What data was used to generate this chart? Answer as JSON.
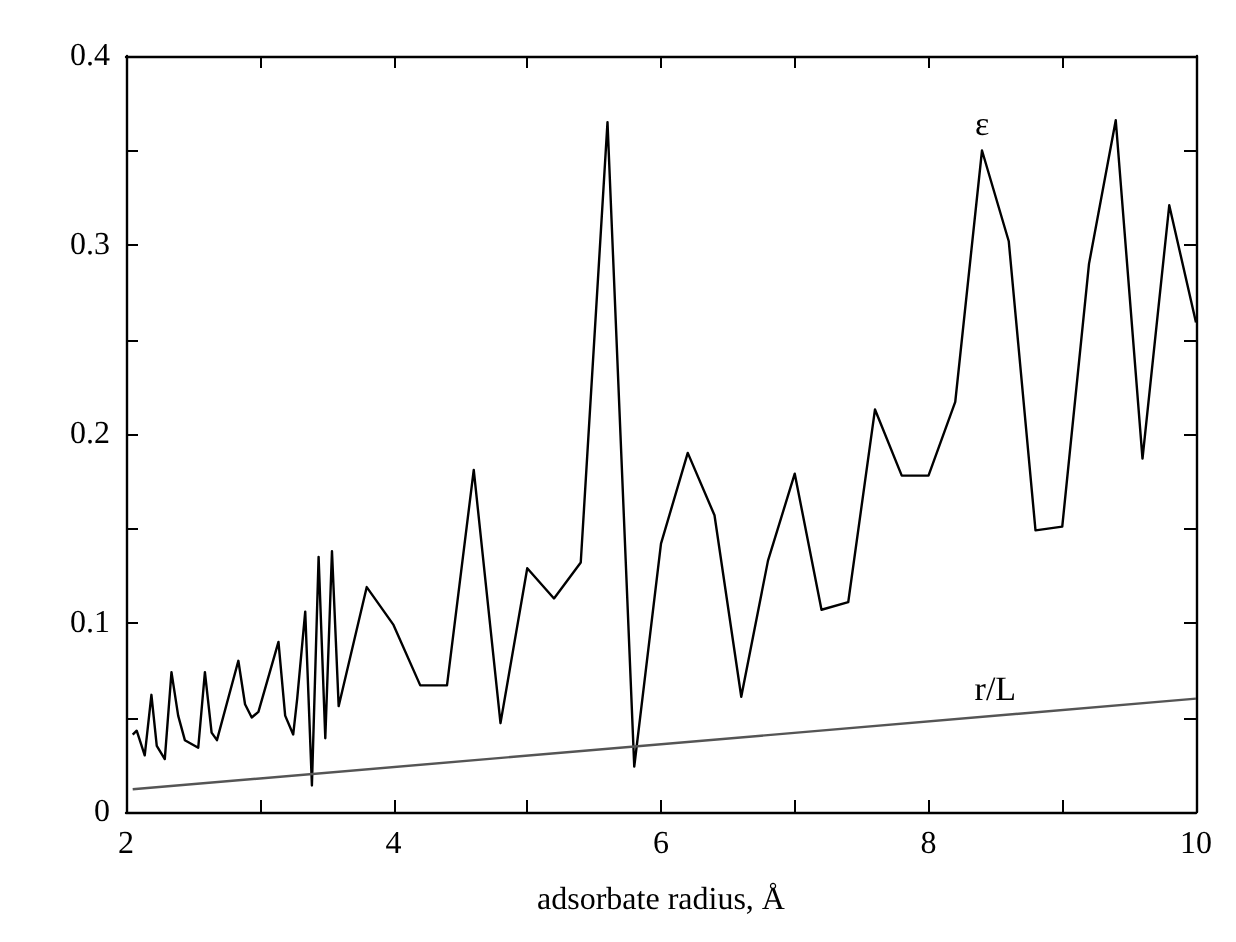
{
  "chart_data": {
    "type": "line",
    "xlabel": "adsorbate radius, Å",
    "xlim": [
      2,
      10
    ],
    "xticks": [
      2,
      {
        "value": 3,
        "label": null
      },
      4,
      {
        "value": 5,
        "label": null
      },
      6,
      {
        "value": 7,
        "label": null
      },
      8,
      {
        "value": 9,
        "label": null
      },
      10
    ],
    "ylim": [
      0,
      0.4
    ],
    "yticks": [
      0,
      {
        "value": 0.05,
        "label": null
      },
      0.1,
      {
        "value": 0.15,
        "label": null
      },
      0.2,
      {
        "value": 0.25,
        "label": null
      },
      0.3,
      {
        "value": 0.35,
        "label": null
      },
      0.4
    ],
    "grid": false,
    "marker": "none",
    "line_style": "solid",
    "series": [
      {
        "color": "#000000",
        "x": [
          2.05,
          2.08,
          2.14,
          2.19,
          2.23,
          2.29,
          2.34,
          2.39,
          2.44,
          2.54,
          2.59,
          2.64,
          2.68,
          2.84,
          2.89,
          2.94,
          2.99,
          3.14,
          3.19,
          3.25,
          3.28,
          3.34,
          3.39,
          3.44,
          3.49,
          3.54,
          3.59,
          3.8,
          4.0,
          4.2,
          4.4,
          4.6,
          4.8,
          5.0,
          5.2,
          5.4,
          5.6,
          5.8,
          6.0,
          6.2,
          6.4,
          6.6,
          6.8,
          7.0,
          7.2,
          7.4,
          7.6,
          7.8,
          8.0,
          8.2,
          8.4,
          8.6,
          8.8,
          9.0,
          9.2,
          9.4,
          9.6,
          9.8,
          10.0
        ],
        "values": [
          0.041,
          0.043,
          0.03,
          0.062,
          0.035,
          0.028,
          0.074,
          0.051,
          0.038,
          0.034,
          0.074,
          0.042,
          0.038,
          0.08,
          0.057,
          0.05,
          0.053,
          0.09,
          0.051,
          0.041,
          0.06,
          0.106,
          0.014,
          0.135,
          0.039,
          0.138,
          0.056,
          0.119,
          0.099,
          0.067,
          0.067,
          0.181,
          0.047,
          0.129,
          0.113,
          0.132,
          0.365,
          0.024,
          0.142,
          0.19,
          0.157,
          0.061,
          0.133,
          0.179,
          0.107,
          0.111,
          0.213,
          0.178,
          0.178,
          0.217,
          0.35,
          0.302,
          0.149,
          0.151,
          0.29,
          0.366,
          0.187,
          0.321,
          0.259
        ]
      },
      {
        "color": "#555555",
        "x": [
          2.05,
          10
        ],
        "values": [
          0.012,
          0.06
        ]
      }
    ],
    "annotations": [
      {
        "text": "ε",
        "x": 8.4,
        "y": 0.35
      },
      {
        "text": "r/L",
        "x": 8.5,
        "y": 0.051
      }
    ]
  }
}
